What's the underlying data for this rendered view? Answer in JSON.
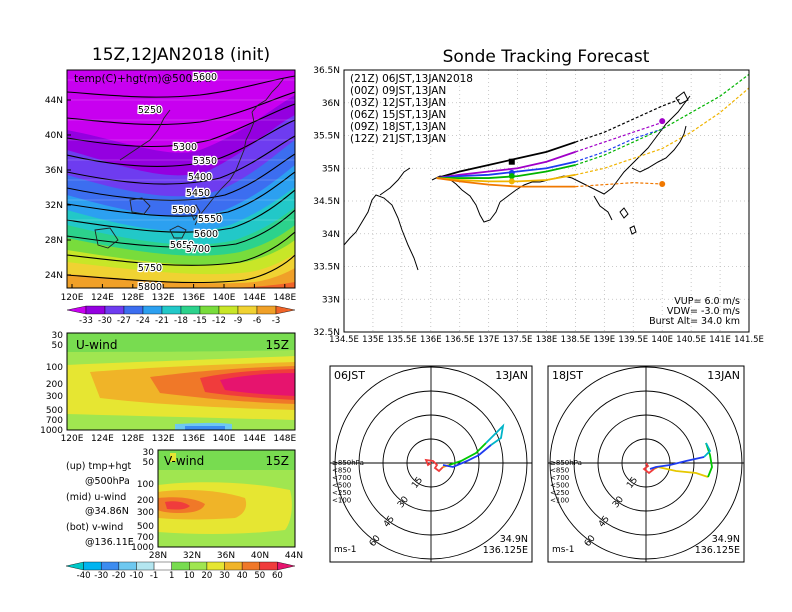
{
  "left": {
    "title": "15Z,12JAN2018 (init)",
    "map": {
      "label": "temp(C)+hgt(m)@500hPa",
      "lat_labels": [
        "44N",
        "40N",
        "36N",
        "32N",
        "28N",
        "24N"
      ],
      "lon_labels": [
        "120E",
        "124E",
        "128E",
        "132E",
        "136E",
        "140E",
        "144E",
        "148E"
      ],
      "contours": [
        "5250",
        "5300",
        "5350",
        "5400",
        "5450",
        "5500",
        "5550",
        "5600",
        "5650",
        "5700",
        "5750",
        "5800"
      ],
      "top_contour": "5600"
    },
    "temp_colorbar": {
      "labels": [
        "-33",
        "-30",
        "-27",
        "-24",
        "-21",
        "-18",
        "-15",
        "-12",
        "-9",
        "-6",
        "-3"
      ],
      "colors": [
        "#c800f0",
        "#9400e0",
        "#6e3cf0",
        "#3c6ef0",
        "#2ca0f0",
        "#22c8c8",
        "#2cd28c",
        "#78dc3c",
        "#c8e628",
        "#f0d232",
        "#f0a028",
        "#f06428"
      ]
    },
    "uwind": {
      "label": "U-wind",
      "time": "15Z",
      "y_labels": [
        "30",
        "50",
        "100",
        "200",
        "300",
        "500",
        "700",
        "1000"
      ],
      "x_labels": [
        "120E",
        "124E",
        "128E",
        "132E",
        "136E",
        "140E",
        "144E",
        "148E"
      ]
    },
    "vwind": {
      "label": "V-wind",
      "time": "15Z",
      "y_labels": [
        "30",
        "50",
        "100",
        "200",
        "300",
        "500",
        "700",
        "1000"
      ],
      "x_labels": [
        "28N",
        "32N",
        "36N",
        "40N",
        "44N"
      ]
    },
    "notes": [
      {
        "text": "(up) tmp+hgt"
      },
      {
        "text": "@500hPa"
      },
      {
        "text": "(mid) u-wind"
      },
      {
        "text": "@34.86N"
      },
      {
        "text": "(bot) v-wind"
      },
      {
        "text": "@136.11E"
      }
    ],
    "wind_colorbar": {
      "labels": [
        "-40",
        "-30",
        "-20",
        "-10",
        "-1",
        "1",
        "10",
        "20",
        "30",
        "40",
        "50",
        "60"
      ],
      "colors": [
        "#00c8c8",
        "#00b4f0",
        "#3c8cf0",
        "#6ec8f0",
        "#b4e6f0",
        "#ffffff",
        "#78dc50",
        "#a0e650",
        "#e6e632",
        "#f0b428",
        "#f07828",
        "#f03c3c",
        "#e6146e"
      ]
    }
  },
  "right": {
    "title": "Sonde Tracking Forecast",
    "map": {
      "lat_labels": [
        "36.5N",
        "36N",
        "35.5N",
        "35N",
        "34.5N",
        "34N",
        "33.5N",
        "33N",
        "32.5N"
      ],
      "lon_labels": [
        "134.5E",
        "135E",
        "135.5E",
        "136E",
        "136.5E",
        "137E",
        "137.5E",
        "138E",
        "138.5E",
        "139E",
        "139.5E",
        "140E",
        "140.5E",
        "141E",
        "141.5E"
      ],
      "legend": [
        {
          "text": "(21Z) 06JST,13JAN2018",
          "color": "#000000"
        },
        {
          "text": "(00Z) 09JST,13JAN",
          "color": "#a000c8"
        },
        {
          "text": "(03Z) 12JST,13JAN",
          "color": "#1e3cf0"
        },
        {
          "text": "(06Z) 15JST,13JAN",
          "color": "#00b400"
        },
        {
          "text": "(09Z) 18JST,13JAN",
          "color": "#f0b400"
        },
        {
          "text": "(12Z) 21JST,13JAN",
          "color": "#f07800"
        }
      ],
      "params": [
        {
          "text": "VUP=  6.0 m/s"
        },
        {
          "text": "VDW= -3.0 m/s"
        },
        {
          "text": "Burst Alt= 34.0 km"
        }
      ]
    },
    "hodo1": {
      "time": "06JST",
      "date": "13JAN",
      "lat": "34.9N",
      "lon": "136.125E",
      "unit": "ms-1",
      "ring_labels": [
        "15",
        "30",
        "45",
        "60"
      ],
      "levels": [
        {
          "text": "≥850hPa",
          "color": "#f03c3c"
        },
        {
          "text": "<850",
          "color": "#f0a000"
        },
        {
          "text": "<700",
          "color": "#e6c800"
        },
        {
          "text": "<500",
          "color": "#00c800"
        },
        {
          "text": "<250",
          "color": "#00b4c8"
        },
        {
          "text": "<100",
          "color": "#1e3cf0"
        }
      ]
    },
    "hodo2": {
      "time": "18JST",
      "date": "13JAN",
      "lat": "34.9N",
      "lon": "136.125E",
      "unit": "ms-1",
      "ring_labels": [
        "15",
        "30",
        "45",
        "60"
      ],
      "levels": [
        {
          "text": "≥850hPa",
          "color": "#f03c3c"
        },
        {
          "text": "<850",
          "color": "#f0a000"
        },
        {
          "text": "<700",
          "color": "#e6c800"
        },
        {
          "text": "<500",
          "color": "#00c800"
        },
        {
          "text": "<250",
          "color": "#00b4c8"
        },
        {
          "text": "<100",
          "color": "#1e3cf0"
        }
      ]
    }
  },
  "chart_data": [
    {
      "type": "heatmap",
      "title": "15Z,12JAN2018 (init)",
      "subtitle": "temp(C)+hgt(m)@500hPa",
      "x_range": [
        120,
        150
      ],
      "y_range": [
        22,
        48
      ],
      "colorbar_levels": [
        -33,
        -30,
        -27,
        -24,
        -21,
        -18,
        -15,
        -12,
        -9,
        -6,
        -3
      ],
      "height_contours_m": [
        5250,
        5300,
        5350,
        5400,
        5450,
        5500,
        5550,
        5600,
        5650,
        5700,
        5750,
        5800
      ]
    },
    {
      "type": "heatmap",
      "title": "U-wind",
      "x_range": [
        120,
        150
      ],
      "y_levels_hPa": [
        30,
        50,
        100,
        200,
        300,
        500,
        700,
        1000
      ],
      "colorbar_levels": [
        -40,
        -30,
        -20,
        -10,
        -1,
        1,
        10,
        20,
        30,
        40,
        50,
        60
      ],
      "max_core": {
        "lon": 146,
        "pressure_hPa": 200,
        "value": 60
      }
    },
    {
      "type": "heatmap",
      "title": "V-wind",
      "x_range": [
        28,
        44
      ],
      "y_levels_hPa": [
        30,
        50,
        100,
        200,
        300,
        500,
        700,
        1000
      ],
      "colorbar_levels": [
        -40,
        -30,
        -20,
        -10,
        -1,
        1,
        10,
        20,
        30,
        40,
        50,
        60
      ]
    },
    {
      "type": "line",
      "title": "Sonde Tracking Forecast",
      "x_range": [
        134.5,
        141.5
      ],
      "y_range": [
        32.5,
        36.5
      ],
      "series": [
        {
          "name": "(21Z) 06JST,13JAN2018",
          "color": "#000000",
          "x": [
            136.1,
            136.5,
            137.0,
            137.5,
            138.0,
            138.5,
            139.0,
            139.5,
            140.0,
            140.3
          ],
          "y": [
            34.85,
            34.95,
            35.05,
            35.15,
            35.25,
            35.4,
            35.55,
            35.75,
            35.95,
            36.05
          ],
          "end": [
            137.4,
            35.1
          ]
        },
        {
          "name": "(00Z) 09JST,13JAN",
          "color": "#a000c8",
          "x": [
            136.1,
            136.5,
            137.0,
            137.5,
            138.0,
            138.5,
            139.0,
            139.5,
            140.0
          ],
          "y": [
            34.85,
            34.9,
            34.95,
            35.0,
            35.1,
            35.25,
            35.4,
            35.55,
            35.7
          ],
          "end": [
            140.0,
            35.72
          ]
        },
        {
          "name": "(03Z) 12JST,13JAN",
          "color": "#1e3cf0",
          "x": [
            136.1,
            136.5,
            137.0,
            137.5,
            138.0,
            138.5,
            139.0,
            139.5,
            140.0
          ],
          "y": [
            34.85,
            34.88,
            34.9,
            34.95,
            35.0,
            35.1,
            35.25,
            35.45,
            35.6
          ],
          "end": [
            137.4,
            34.93
          ]
        },
        {
          "name": "(06Z) 15JST,13JAN",
          "color": "#00b400",
          "x": [
            136.1,
            136.5,
            137.0,
            137.5,
            138.0,
            138.5,
            139.0,
            139.5,
            140.0,
            140.5,
            141.0,
            141.6
          ],
          "y": [
            34.85,
            34.85,
            34.85,
            34.88,
            34.95,
            35.05,
            35.2,
            35.4,
            35.6,
            35.85,
            36.1,
            36.5
          ],
          "end": [
            137.4,
            34.88
          ]
        },
        {
          "name": "(09Z) 18JST,13JAN",
          "color": "#f0b400",
          "x": [
            136.1,
            136.5,
            137.0,
            137.5,
            138.0,
            138.5,
            139.0,
            139.5,
            140.0,
            140.5,
            141.0,
            141.6
          ],
          "y": [
            34.85,
            34.82,
            34.8,
            34.8,
            34.82,
            34.9,
            35.0,
            35.15,
            35.3,
            35.55,
            35.85,
            36.3
          ],
          "end": [
            137.4,
            34.8
          ]
        },
        {
          "name": "(12Z) 21JST,13JAN",
          "color": "#f07800",
          "x": [
            136.1,
            136.5,
            137.0,
            137.5,
            138.0,
            138.5,
            139.0,
            139.5,
            140.0
          ],
          "y": [
            34.85,
            34.8,
            34.75,
            34.72,
            34.72,
            34.72,
            34.75,
            34.78,
            34.76
          ],
          "end": [
            140.0,
            34.76
          ]
        }
      ],
      "params": {
        "VUP_m_s": 6.0,
        "VDW_m_s": -3.0,
        "burst_alt_km": 34.0
      }
    }
  ]
}
